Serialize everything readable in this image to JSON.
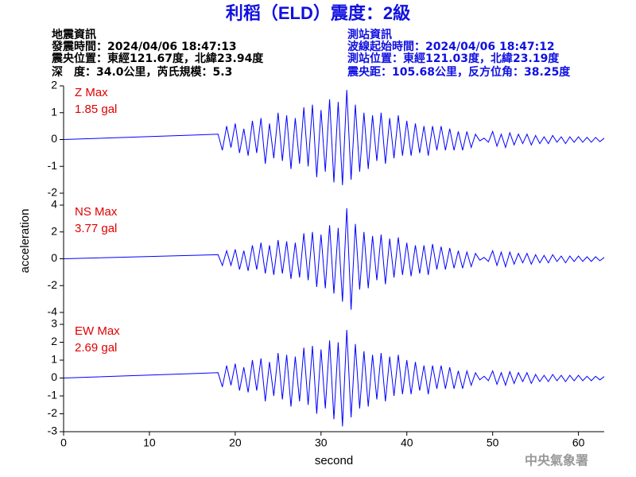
{
  "header": {
    "title": "利稻（ELD）震度：2級",
    "left": [
      "地震資訊",
      "發震時間：2024/04/06 18:47:13",
      "震央位置：東經121.67度，北緯23.94度",
      "深　度：34.0公里，芮氏規模：5.3"
    ],
    "right": [
      "測站資訊",
      "波線起始時間：2024/04/06 18:47:12",
      "測站位置：東經121.03度，北緯23.19度",
      "震央距：105.68公里，反方位角：38.25度"
    ]
  },
  "ylabel": "acceleration",
  "watermark": "中央氣象署",
  "chart_data": [
    {
      "type": "line",
      "annotation": [
        "Z Max",
        "1.85 gal"
      ],
      "color": "#0000ff",
      "ylim": [
        -2,
        2
      ],
      "yticks": [
        -2,
        -1,
        0,
        1,
        2
      ],
      "x": [
        0,
        18,
        18.5,
        19,
        19.5,
        20,
        20.5,
        21,
        21.5,
        22,
        22.5,
        23,
        23.5,
        24,
        24.5,
        25,
        25.5,
        26,
        26.5,
        27,
        27.5,
        28,
        28.5,
        29,
        29.5,
        30,
        30.5,
        31,
        31.5,
        32,
        32.5,
        33,
        33.5,
        34,
        34.5,
        35,
        35.5,
        36,
        36.5,
        37,
        37.5,
        38,
        38.5,
        39,
        39.5,
        40,
        40.5,
        41,
        41.5,
        42,
        42.5,
        43,
        43.5,
        44,
        44.5,
        45,
        45.5,
        46,
        46.5,
        47,
        47.5,
        48,
        48.5,
        49,
        49.5,
        50,
        50.5,
        51,
        51.5,
        52,
        52.5,
        53,
        53.5,
        54,
        54.5,
        55,
        55.5,
        56,
        56.5,
        57,
        57.5,
        58,
        58.5,
        59,
        59.5,
        60,
        60.5,
        61,
        61.5,
        62,
        62.5,
        63
      ],
      "values": [
        0,
        0.2,
        -0.4,
        0.5,
        -0.3,
        0.6,
        -0.5,
        0.4,
        -0.6,
        0.7,
        -0.5,
        0.8,
        -0.9,
        0.6,
        -0.7,
        1.0,
        -0.8,
        0.9,
        -1.1,
        0.8,
        -0.9,
        1.2,
        -1.0,
        1.3,
        -1.4,
        1.1,
        -1.2,
        1.5,
        -1.6,
        1.4,
        -1.7,
        1.85,
        -1.5,
        1.3,
        -1.2,
        1.0,
        -1.1,
        0.9,
        -0.8,
        1.0,
        -0.9,
        0.8,
        -0.7,
        0.9,
        -0.6,
        0.7,
        -0.6,
        0.6,
        -0.5,
        0.5,
        -0.6,
        0.5,
        -0.4,
        0.5,
        -0.4,
        0.4,
        -0.4,
        0.3,
        -0.4,
        0.3,
        -0.3,
        0.2,
        -0.05,
        0.05,
        -0.1,
        0.3,
        -0.25,
        0.2,
        -0.3,
        0.25,
        -0.2,
        0.2,
        -0.15,
        0.2,
        -0.2,
        0.15,
        -0.15,
        0.1,
        -0.15,
        0.15,
        -0.1,
        0.1,
        -0.15,
        0.1,
        -0.1,
        0.1,
        -0.1,
        0.08,
        -0.1,
        0.08,
        -0.08,
        0.05
      ]
    },
    {
      "type": "line",
      "annotation": [
        "NS Max",
        "3.77 gal"
      ],
      "color": "#0000ff",
      "ylim": [
        -4,
        4
      ],
      "yticks": [
        -4,
        -2,
        0,
        2,
        4
      ],
      "x": [
        0,
        18,
        18.5,
        19,
        19.5,
        20,
        20.5,
        21,
        21.5,
        22,
        22.5,
        23,
        23.5,
        24,
        24.5,
        25,
        25.5,
        26,
        26.5,
        27,
        27.5,
        28,
        28.5,
        29,
        29.5,
        30,
        30.5,
        31,
        31.5,
        32,
        32.5,
        33,
        33.5,
        34,
        34.5,
        35,
        35.5,
        36,
        36.5,
        37,
        37.5,
        38,
        38.5,
        39,
        39.5,
        40,
        40.5,
        41,
        41.5,
        42,
        42.5,
        43,
        43.5,
        44,
        44.5,
        45,
        45.5,
        46,
        46.5,
        47,
        47.5,
        48,
        48.5,
        49,
        49.5,
        50,
        50.5,
        51,
        51.5,
        52,
        52.5,
        53,
        53.5,
        54,
        54.5,
        55,
        55.5,
        56,
        56.5,
        57,
        57.5,
        58,
        58.5,
        59,
        59.5,
        60,
        60.5,
        61,
        61.5,
        62,
        62.5,
        63
      ],
      "values": [
        0,
        0.3,
        -0.5,
        0.6,
        -0.5,
        0.7,
        -0.8,
        0.6,
        -0.9,
        1.0,
        -0.8,
        1.2,
        -1.1,
        1.0,
        -1.2,
        1.4,
        -1.1,
        1.3,
        -1.5,
        1.2,
        -1.4,
        1.9,
        -1.6,
        2.0,
        -2.1,
        1.8,
        -2.2,
        2.5,
        -2.6,
        2.3,
        -3.2,
        3.77,
        -3.8,
        2.6,
        -2.3,
        2.0,
        -2.2,
        1.7,
        -1.6,
        1.8,
        -1.9,
        1.5,
        -1.4,
        1.6,
        -1.2,
        1.2,
        -1.3,
        1.0,
        -1.1,
        1.0,
        -1.2,
        1.1,
        -0.8,
        0.9,
        -0.8,
        0.8,
        -0.7,
        0.6,
        -0.7,
        0.5,
        -0.6,
        0.4,
        -0.1,
        0.1,
        -0.2,
        0.6,
        -0.5,
        0.5,
        -0.6,
        0.5,
        -0.4,
        0.4,
        -0.3,
        0.4,
        -0.4,
        0.3,
        -0.3,
        0.25,
        -0.3,
        0.3,
        -0.2,
        0.2,
        -0.3,
        0.2,
        -0.2,
        0.2,
        -0.2,
        0.15,
        -0.2,
        0.15,
        -0.15,
        0.1
      ]
    },
    {
      "type": "line",
      "annotation": [
        "EW Max",
        "2.69 gal"
      ],
      "color": "#0000ff",
      "ylim": [
        -3,
        3
      ],
      "yticks": [
        -3,
        -2,
        -1,
        0,
        1,
        2,
        3
      ],
      "xlim": [
        0,
        63
      ],
      "xticks": [
        0,
        10,
        20,
        30,
        40,
        50,
        60
      ],
      "xlabel": "second",
      "x": [
        0,
        18,
        18.5,
        19,
        19.5,
        20,
        20.5,
        21,
        21.5,
        22,
        22.5,
        23,
        23.5,
        24,
        24.5,
        25,
        25.5,
        26,
        26.5,
        27,
        27.5,
        28,
        28.5,
        29,
        29.5,
        30,
        30.5,
        31,
        31.5,
        32,
        32.5,
        33,
        33.5,
        34,
        34.5,
        35,
        35.5,
        36,
        36.5,
        37,
        37.5,
        38,
        38.5,
        39,
        39.5,
        40,
        40.5,
        41,
        41.5,
        42,
        42.5,
        43,
        43.5,
        44,
        44.5,
        45,
        45.5,
        46,
        46.5,
        47,
        47.5,
        48,
        48.5,
        49,
        49.5,
        50,
        50.5,
        51,
        51.5,
        52,
        52.5,
        53,
        53.5,
        54,
        54.5,
        55,
        55.5,
        56,
        56.5,
        57,
        57.5,
        58,
        58.5,
        59,
        59.5,
        60,
        60.5,
        61,
        61.5,
        62,
        62.5,
        63
      ],
      "values": [
        0,
        0.3,
        -0.5,
        0.7,
        -0.4,
        0.8,
        -0.7,
        0.6,
        -0.8,
        1.0,
        -0.7,
        1.1,
        -1.3,
        0.9,
        -1.0,
        1.4,
        -1.2,
        1.3,
        -1.6,
        1.2,
        -1.3,
        1.7,
        -1.5,
        1.8,
        -2.0,
        1.6,
        -1.7,
        2.1,
        -2.3,
        2.0,
        -2.7,
        2.69,
        -2.2,
        1.9,
        -1.7,
        1.5,
        -1.6,
        1.3,
        -1.2,
        1.4,
        -1.3,
        1.2,
        -1.0,
        1.3,
        -0.9,
        1.0,
        -0.9,
        0.9,
        -0.7,
        0.7,
        -0.9,
        0.7,
        -0.6,
        0.7,
        -0.6,
        0.6,
        -0.6,
        0.4,
        -0.6,
        0.4,
        -0.4,
        0.3,
        -0.1,
        0.1,
        -0.15,
        0.4,
        -0.35,
        0.3,
        -0.4,
        0.35,
        -0.3,
        0.3,
        -0.2,
        0.3,
        -0.3,
        0.2,
        -0.2,
        0.15,
        -0.2,
        0.2,
        -0.15,
        0.15,
        -0.2,
        0.15,
        -0.15,
        0.15,
        -0.15,
        0.1,
        -0.15,
        0.1,
        -0.1,
        0.08
      ]
    }
  ]
}
